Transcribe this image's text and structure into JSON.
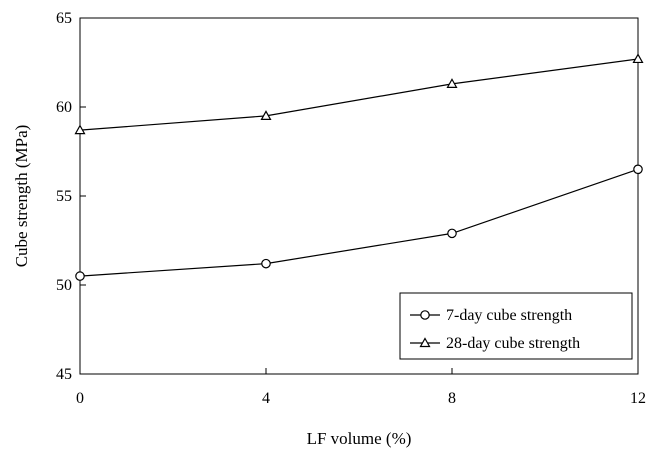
{
  "chart_data": {
    "type": "line",
    "title": "",
    "xlabel": "LF volume (%)",
    "ylabel": "Cube strength (MPa)",
    "x": [
      0,
      4,
      8,
      12
    ],
    "xlim": [
      0,
      12
    ],
    "ylim": [
      45,
      65
    ],
    "xticks": [
      "0",
      "4",
      "8",
      "12"
    ],
    "yticks": [
      "45",
      "50",
      "55",
      "60",
      "65"
    ],
    "grid": false,
    "legend_position": "bottom-right",
    "series": [
      {
        "name": "7-day cube strength",
        "marker": "circle",
        "values": [
          50.5,
          51.2,
          52.9,
          56.5
        ]
      },
      {
        "name": "28-day cube strength",
        "marker": "triangle",
        "values": [
          58.7,
          59.5,
          61.3,
          62.7
        ]
      }
    ],
    "colors": {
      "line": "#000000",
      "marker_fill": "#ffffff",
      "background": "#ffffff"
    }
  }
}
